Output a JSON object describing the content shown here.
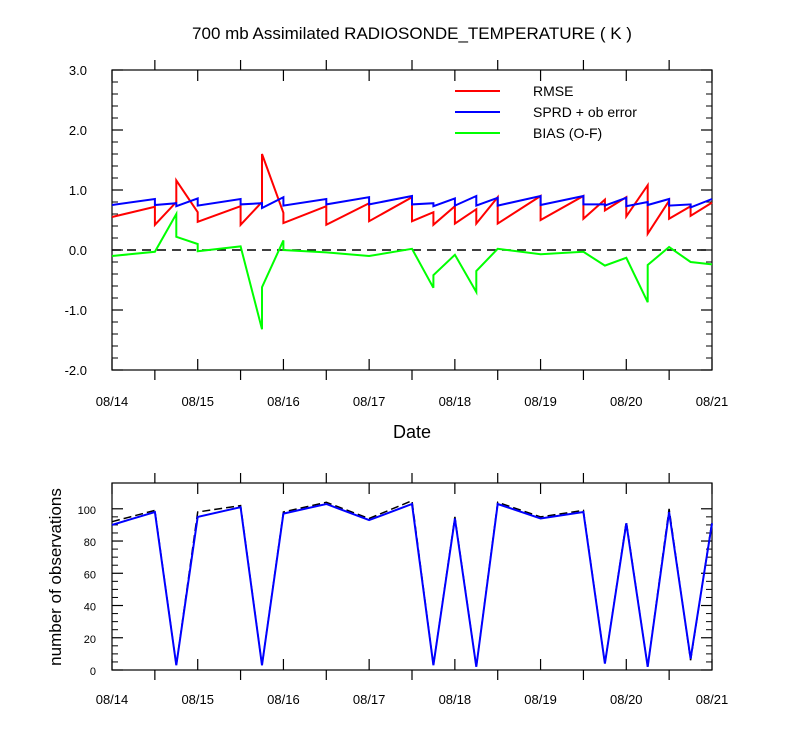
{
  "colors": {
    "rmse": "#ff0000",
    "sprd": "#0000ff",
    "bias": "#00ff00",
    "zero_line": "#000000",
    "obs_used": "#0000ff",
    "obs_total": "#000000"
  },
  "chart_data": [
    {
      "type": "line",
      "title": "700 mb Assimilated RADIOSONDE_TEMPERATURE ( K )",
      "xlabel": "Date",
      "ylabel": "",
      "x_tick_labels": [
        "08/14",
        "08/15",
        "08/16",
        "08/17",
        "08/18",
        "08/19",
        "08/20",
        "08/21"
      ],
      "xlim": [
        0,
        7
      ],
      "ylim": [
        -2.0,
        3.0
      ],
      "y_tick_labels": [
        "-2.0",
        "-1.0",
        "0.0",
        "1.0",
        "2.0",
        "3.0"
      ],
      "legend_position": "top-right",
      "reference_line": {
        "y": 0.0,
        "style": "dashed"
      },
      "x": [
        0,
        0.5,
        0.5,
        0.75,
        0.75,
        1,
        1,
        1.5,
        1.5,
        1.75,
        1.75,
        2,
        2,
        2.5,
        2.5,
        3,
        3,
        3.5,
        3.5,
        3.75,
        3.75,
        4,
        4,
        4.25,
        4.25,
        4.5,
        4.5,
        5,
        5,
        5.5,
        5.5,
        5.75,
        5.75,
        6,
        6,
        6.25,
        6.25,
        6.5,
        6.5,
        6.75,
        6.75,
        7
      ],
      "series": [
        {
          "name": "RMSE",
          "color": "#ff0000",
          "values": [
            0.55,
            0.72,
            0.42,
            0.8,
            1.16,
            0.63,
            0.47,
            0.73,
            0.42,
            0.8,
            1.6,
            0.62,
            0.45,
            0.73,
            0.42,
            0.78,
            0.48,
            0.88,
            0.48,
            0.63,
            0.42,
            0.73,
            0.44,
            0.68,
            0.44,
            0.88,
            0.44,
            0.9,
            0.5,
            0.9,
            0.52,
            0.84,
            0.66,
            0.88,
            0.56,
            1.08,
            0.27,
            0.82,
            0.52,
            0.73,
            0.57,
            0.79
          ]
        },
        {
          "name": "SPRD + ob error",
          "color": "#0000ff",
          "values": [
            0.75,
            0.85,
            0.75,
            0.78,
            0.73,
            0.86,
            0.74,
            0.85,
            0.76,
            0.78,
            0.7,
            0.88,
            0.74,
            0.85,
            0.76,
            0.88,
            0.76,
            0.9,
            0.76,
            0.78,
            0.73,
            0.86,
            0.74,
            0.9,
            0.74,
            0.87,
            0.74,
            0.9,
            0.75,
            0.9,
            0.76,
            0.76,
            0.74,
            0.87,
            0.73,
            0.8,
            0.75,
            0.85,
            0.74,
            0.76,
            0.71,
            0.85
          ]
        },
        {
          "name": "BIAS (O-F)",
          "color": "#00ff00",
          "values": [
            -0.1,
            -0.03,
            -0.03,
            0.6,
            0.22,
            0.1,
            -0.02,
            0.06,
            0.06,
            -1.32,
            -0.62,
            0.16,
            0.0,
            -0.04,
            -0.04,
            -0.1,
            -0.1,
            0.02,
            0.02,
            -0.63,
            -0.42,
            -0.08,
            -0.08,
            -0.7,
            -0.35,
            0.02,
            0.02,
            -0.07,
            -0.07,
            -0.03,
            -0.03,
            -0.26,
            -0.26,
            -0.13,
            -0.13,
            -0.87,
            -0.25,
            0.05,
            0.05,
            -0.2,
            -0.2,
            -0.24
          ]
        }
      ]
    },
    {
      "type": "line",
      "title": "",
      "xlabel": "",
      "ylabel": "number of observations",
      "x_tick_labels": [
        "08/14",
        "08/15",
        "08/16",
        "08/17",
        "08/18",
        "08/19",
        "08/20",
        "08/21"
      ],
      "xlim": [
        0,
        7
      ],
      "ylim": [
        0,
        116
      ],
      "y_tick_labels": [
        "0",
        "20",
        "40",
        "60",
        "80",
        "100"
      ],
      "x": [
        0,
        0.5,
        0.75,
        1,
        1.5,
        1.75,
        2,
        2.5,
        3,
        3.5,
        3.75,
        4,
        4.25,
        4.5,
        5,
        5.5,
        5.75,
        6,
        6.25,
        6.5,
        6.75,
        7
      ],
      "series": [
        {
          "style": "dashed",
          "color": "#000000",
          "values": [
            92,
            99,
            3,
            98,
            102,
            3,
            98,
            104,
            94,
            105,
            3,
            95,
            2,
            104,
            95,
            99,
            4,
            92,
            2,
            100,
            6,
            92
          ]
        },
        {
          "style": "solid",
          "color": "#0000ff",
          "values": [
            90,
            98,
            3,
            95,
            101,
            3,
            97,
            103,
            93,
            103,
            3,
            94,
            2,
            103,
            94,
            98,
            4,
            91,
            2,
            98,
            7,
            91
          ]
        }
      ]
    }
  ]
}
